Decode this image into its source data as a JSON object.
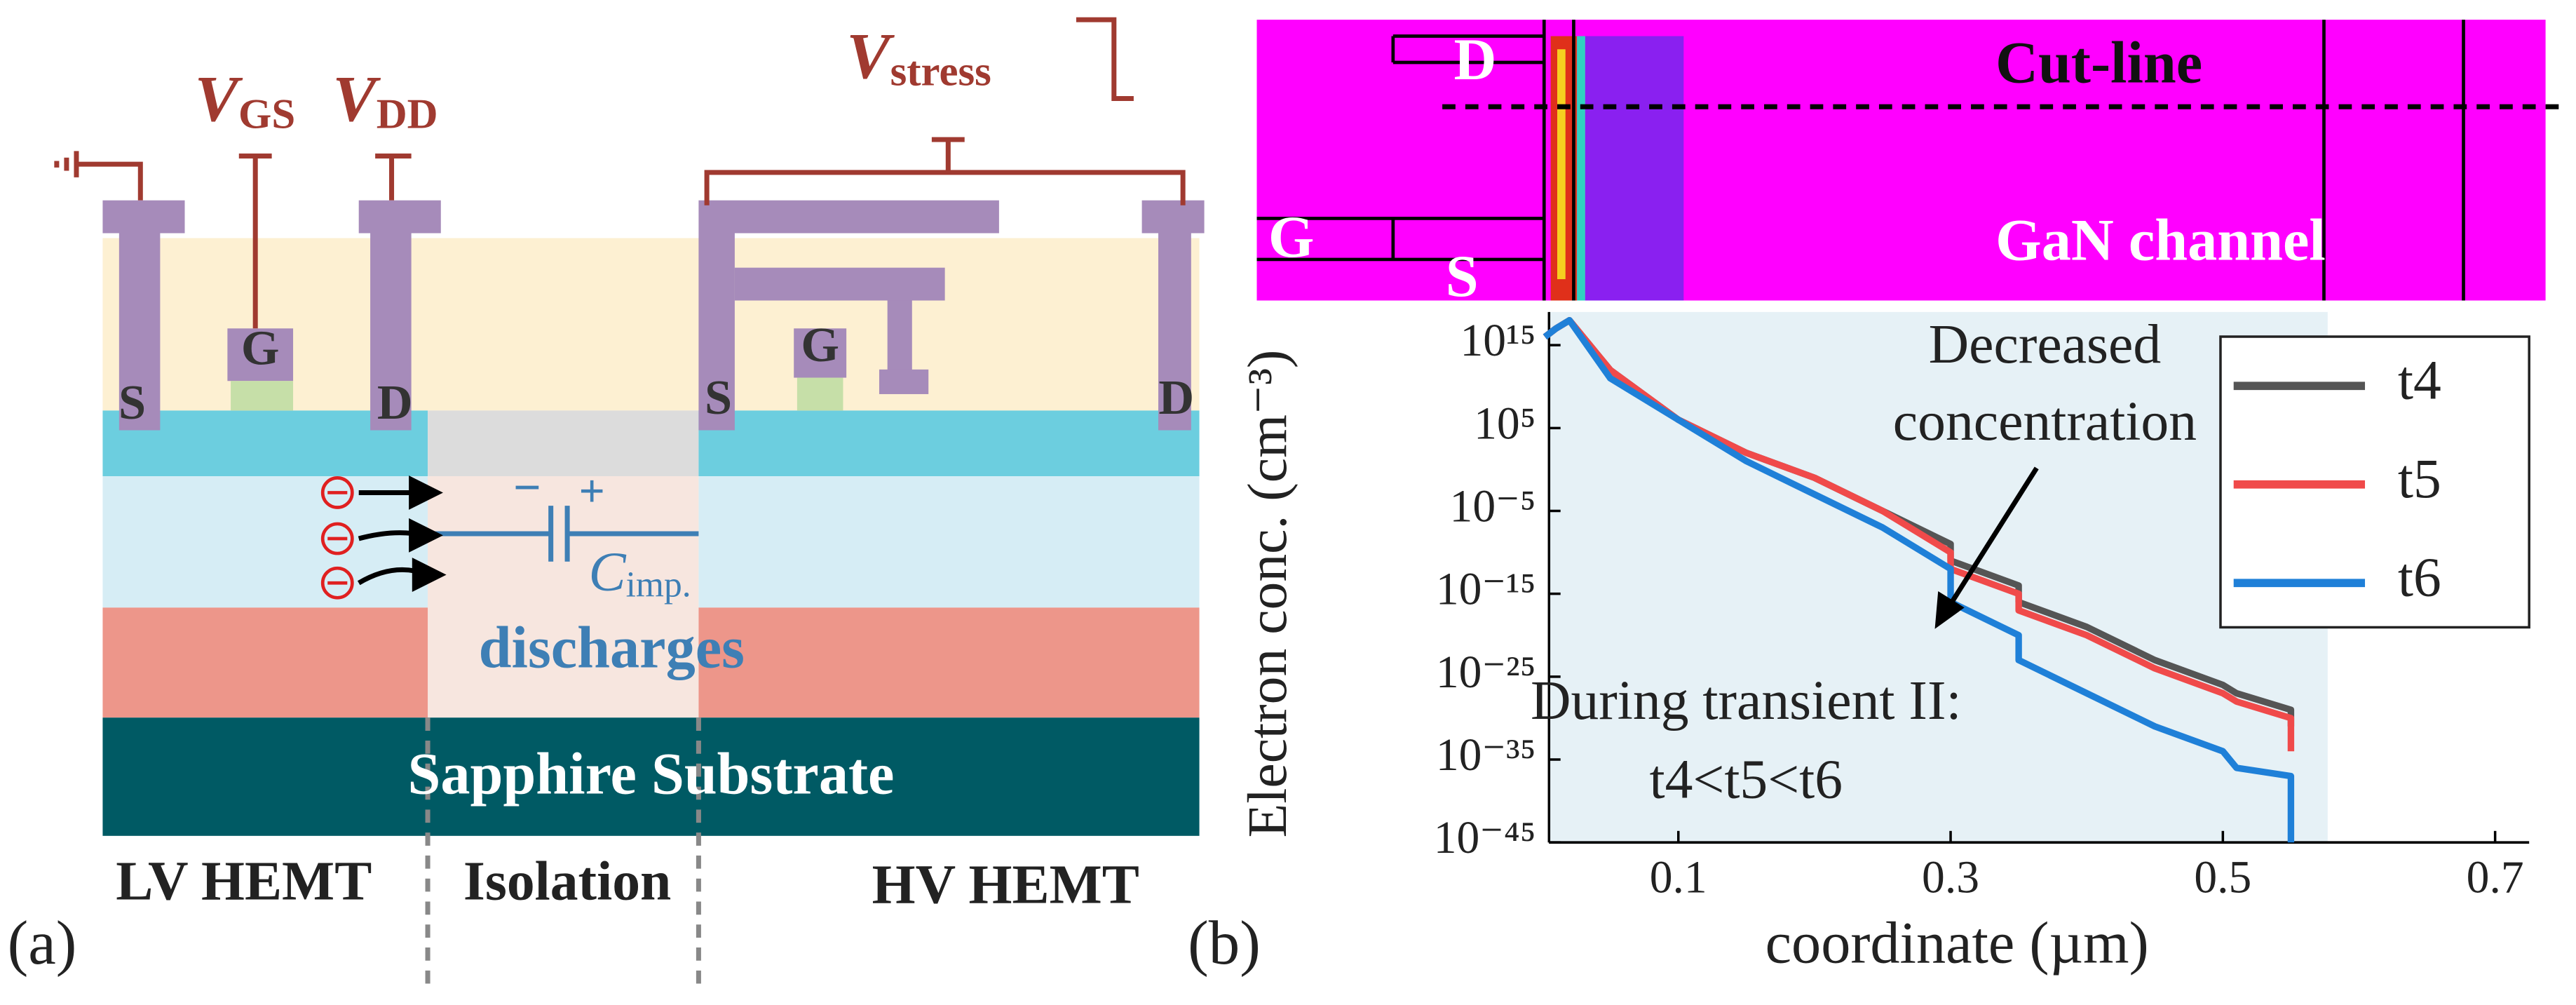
{
  "panel_labels": [
    "(a)",
    "(b)"
  ],
  "panel_a": {
    "sources": [
      {
        "main": "V",
        "sub": "GS"
      },
      {
        "main": "V",
        "sub": "DD"
      },
      {
        "main": "V",
        "sub": "stress"
      }
    ],
    "terminals": [
      "S",
      "G",
      "D",
      "S",
      "G",
      "D"
    ],
    "capacitor": {
      "minus": "−",
      "plus": "+",
      "main": "C",
      "sub": "imp."
    },
    "discharges": "discharges",
    "substrate": "Sapphire Substrate",
    "regions": [
      "LV HEMT",
      "Isolation",
      "HV HEMT"
    ]
  },
  "panel_b_map": {
    "drain": "D",
    "gate": "G",
    "source": "S",
    "cut_line": "Cut-line",
    "channel": "GaN channel"
  },
  "chart_data": {
    "type": "line",
    "yscale": "log",
    "x_label": "coordinate (µm)",
    "y_label": "Electron conc. (cm⁻³)",
    "x": [
      0.002,
      0.01,
      0.02,
      0.05,
      0.1,
      0.15,
      0.2,
      0.25,
      0.3,
      0.3,
      0.35,
      0.35,
      0.4,
      0.45,
      0.5,
      0.51,
      0.55,
      0.55
    ],
    "series": [
      {
        "name": "t4",
        "color": "#555555",
        "values": [
          1e+16,
          1e+17,
          1e+18,
          1000000000000.0,
          1000000.0,
          100.0,
          0.1,
          1e-05,
          1e-09,
          1e-11,
          1e-14,
          1e-16,
          1e-19,
          1e-23,
          1e-26,
          1e-27,
          1e-29,
          1e-31
        ]
      },
      {
        "name": "t5",
        "color": "#f04a4a",
        "values": [
          1e+16,
          1e+17,
          1e+18,
          1000000000000.0,
          1000000.0,
          100.0,
          0.1,
          1e-05,
          1e-10,
          1e-12,
          1e-15,
          1e-17,
          1e-20,
          1e-24,
          1e-27,
          1e-28,
          1e-30,
          1e-34
        ]
      },
      {
        "name": "t6",
        "color": "#1f80d8",
        "values": [
          1e+16,
          1e+17,
          1e+18,
          100000000000.0,
          1000000.0,
          10.0,
          0.001,
          1e-07,
          1e-12,
          1e-16,
          1e-20,
          1e-23,
          1e-27,
          1e-31,
          1e-34,
          1e-36,
          1e-37,
          1e-45
        ]
      }
    ],
    "xlim": [
      0.005,
      0.725
    ],
    "xticks": [
      0.1,
      0.3,
      0.5,
      0.7
    ],
    "ylim": [
      1e-45,
      1e+19
    ],
    "yticks": [
      {
        "value": 1000000000000000.0,
        "label": "10¹⁵"
      },
      {
        "value": 100000.0,
        "label": "10⁵"
      },
      {
        "value": 1e-05,
        "label": "10⁻⁵"
      },
      {
        "value": 1e-15,
        "label": "10⁻¹⁵"
      },
      {
        "value": 1e-25,
        "label": "10⁻²⁵"
      },
      {
        "value": 1e-35,
        "label": "10⁻³⁵"
      },
      {
        "value": 1e-45,
        "label": "10⁻⁴⁵"
      }
    ],
    "highlight_x": [
      0.005,
      0.577
    ],
    "highlight_color": "#e6f1f6",
    "legend": "upper right",
    "annotations": [
      "Decreased",
      "concentration",
      "During transient II:",
      "t4<t5<t6"
    ]
  }
}
